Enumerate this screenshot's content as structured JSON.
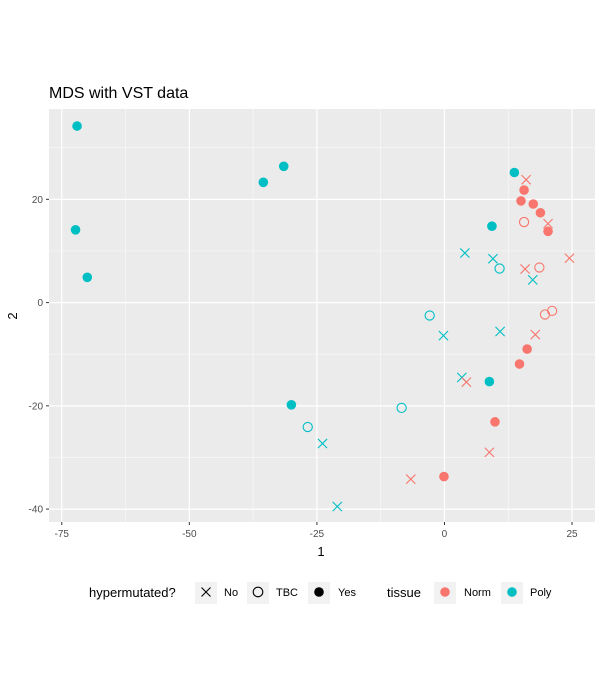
{
  "chart_data": {
    "type": "scatter",
    "title": "MDS with VST data",
    "xlabel": "1",
    "ylabel": "2",
    "xlim": [
      -77.5,
      29.5
    ],
    "ylim": [
      -42.5,
      37.5
    ],
    "x_ticks": [
      -75,
      -50,
      -25,
      0,
      25
    ],
    "y_ticks": [
      -40,
      -20,
      0,
      20
    ],
    "grid": true,
    "panel_background": "#ebebeb",
    "colors": {
      "Norm": "#f8766d",
      "Poly": "#00bfc4"
    },
    "legend_position": "bottom",
    "legends": {
      "shape": {
        "title": "hypermutated?",
        "entries": [
          {
            "label": "No",
            "shape": "cross"
          },
          {
            "label": "TBC",
            "shape": "open-circle"
          },
          {
            "label": "Yes",
            "shape": "filled-circle"
          }
        ]
      },
      "color": {
        "title": "tissue",
        "entries": [
          {
            "label": "Norm"
          },
          {
            "label": "Poly"
          }
        ]
      }
    },
    "points": [
      {
        "x": -72.0,
        "y": 34.2,
        "tissue": "Poly",
        "hyper": "Yes"
      },
      {
        "x": -72.3,
        "y": 14.1,
        "tissue": "Poly",
        "hyper": "Yes"
      },
      {
        "x": -70.0,
        "y": 4.9,
        "tissue": "Poly",
        "hyper": "Yes"
      },
      {
        "x": -35.5,
        "y": 23.3,
        "tissue": "Poly",
        "hyper": "Yes"
      },
      {
        "x": -31.5,
        "y": 26.4,
        "tissue": "Poly",
        "hyper": "Yes"
      },
      {
        "x": -30.0,
        "y": -19.8,
        "tissue": "Poly",
        "hyper": "Yes"
      },
      {
        "x": 9.3,
        "y": 14.8,
        "tissue": "Poly",
        "hyper": "Yes"
      },
      {
        "x": 8.8,
        "y": -15.3,
        "tissue": "Poly",
        "hyper": "Yes"
      },
      {
        "x": 13.7,
        "y": 25.2,
        "tissue": "Poly",
        "hyper": "Yes"
      },
      {
        "x": -26.8,
        "y": -24.1,
        "tissue": "Poly",
        "hyper": "TBC"
      },
      {
        "x": -8.4,
        "y": -20.4,
        "tissue": "Poly",
        "hyper": "TBC"
      },
      {
        "x": -2.9,
        "y": -2.5,
        "tissue": "Poly",
        "hyper": "TBC"
      },
      {
        "x": 10.8,
        "y": 6.6,
        "tissue": "Poly",
        "hyper": "TBC"
      },
      {
        "x": -23.9,
        "y": -27.3,
        "tissue": "Poly",
        "hyper": "No"
      },
      {
        "x": -21.0,
        "y": -39.5,
        "tissue": "Poly",
        "hyper": "No"
      },
      {
        "x": -0.2,
        "y": -6.4,
        "tissue": "Poly",
        "hyper": "No"
      },
      {
        "x": 4.0,
        "y": 9.6,
        "tissue": "Poly",
        "hyper": "No"
      },
      {
        "x": 3.4,
        "y": -14.5,
        "tissue": "Poly",
        "hyper": "No"
      },
      {
        "x": 9.5,
        "y": 8.5,
        "tissue": "Poly",
        "hyper": "No"
      },
      {
        "x": 10.9,
        "y": -5.6,
        "tissue": "Poly",
        "hyper": "No"
      },
      {
        "x": 17.3,
        "y": 4.4,
        "tissue": "Poly",
        "hyper": "No"
      },
      {
        "x": 15.6,
        "y": 21.8,
        "tissue": "Norm",
        "hyper": "Yes"
      },
      {
        "x": 15.0,
        "y": 19.7,
        "tissue": "Norm",
        "hyper": "Yes"
      },
      {
        "x": 17.4,
        "y": 19.1,
        "tissue": "Norm",
        "hyper": "Yes"
      },
      {
        "x": 18.8,
        "y": 17.4,
        "tissue": "Norm",
        "hyper": "Yes"
      },
      {
        "x": 20.3,
        "y": 13.8,
        "tissue": "Norm",
        "hyper": "Yes"
      },
      {
        "x": 16.2,
        "y": -9.0,
        "tissue": "Norm",
        "hyper": "Yes"
      },
      {
        "x": 14.7,
        "y": -11.9,
        "tissue": "Norm",
        "hyper": "Yes"
      },
      {
        "x": 9.9,
        "y": -23.1,
        "tissue": "Norm",
        "hyper": "Yes"
      },
      {
        "x": -0.1,
        "y": -33.7,
        "tissue": "Norm",
        "hyper": "Yes"
      },
      {
        "x": 15.6,
        "y": 15.6,
        "tissue": "Norm",
        "hyper": "TBC"
      },
      {
        "x": 18.6,
        "y": 6.8,
        "tissue": "Norm",
        "hyper": "TBC"
      },
      {
        "x": 19.7,
        "y": -2.3,
        "tissue": "Norm",
        "hyper": "TBC"
      },
      {
        "x": 21.1,
        "y": -1.6,
        "tissue": "Norm",
        "hyper": "TBC"
      },
      {
        "x": 16.0,
        "y": 23.8,
        "tissue": "Norm",
        "hyper": "No"
      },
      {
        "x": 20.3,
        "y": 15.3,
        "tissue": "Norm",
        "hyper": "No"
      },
      {
        "x": 15.8,
        "y": 6.5,
        "tissue": "Norm",
        "hyper": "No"
      },
      {
        "x": 24.5,
        "y": 8.6,
        "tissue": "Norm",
        "hyper": "No"
      },
      {
        "x": 17.8,
        "y": -6.2,
        "tissue": "Norm",
        "hyper": "No"
      },
      {
        "x": 4.3,
        "y": -15.4,
        "tissue": "Norm",
        "hyper": "No"
      },
      {
        "x": 8.8,
        "y": -29.0,
        "tissue": "Norm",
        "hyper": "No"
      },
      {
        "x": -6.6,
        "y": -34.2,
        "tissue": "Norm",
        "hyper": "No"
      }
    ]
  }
}
